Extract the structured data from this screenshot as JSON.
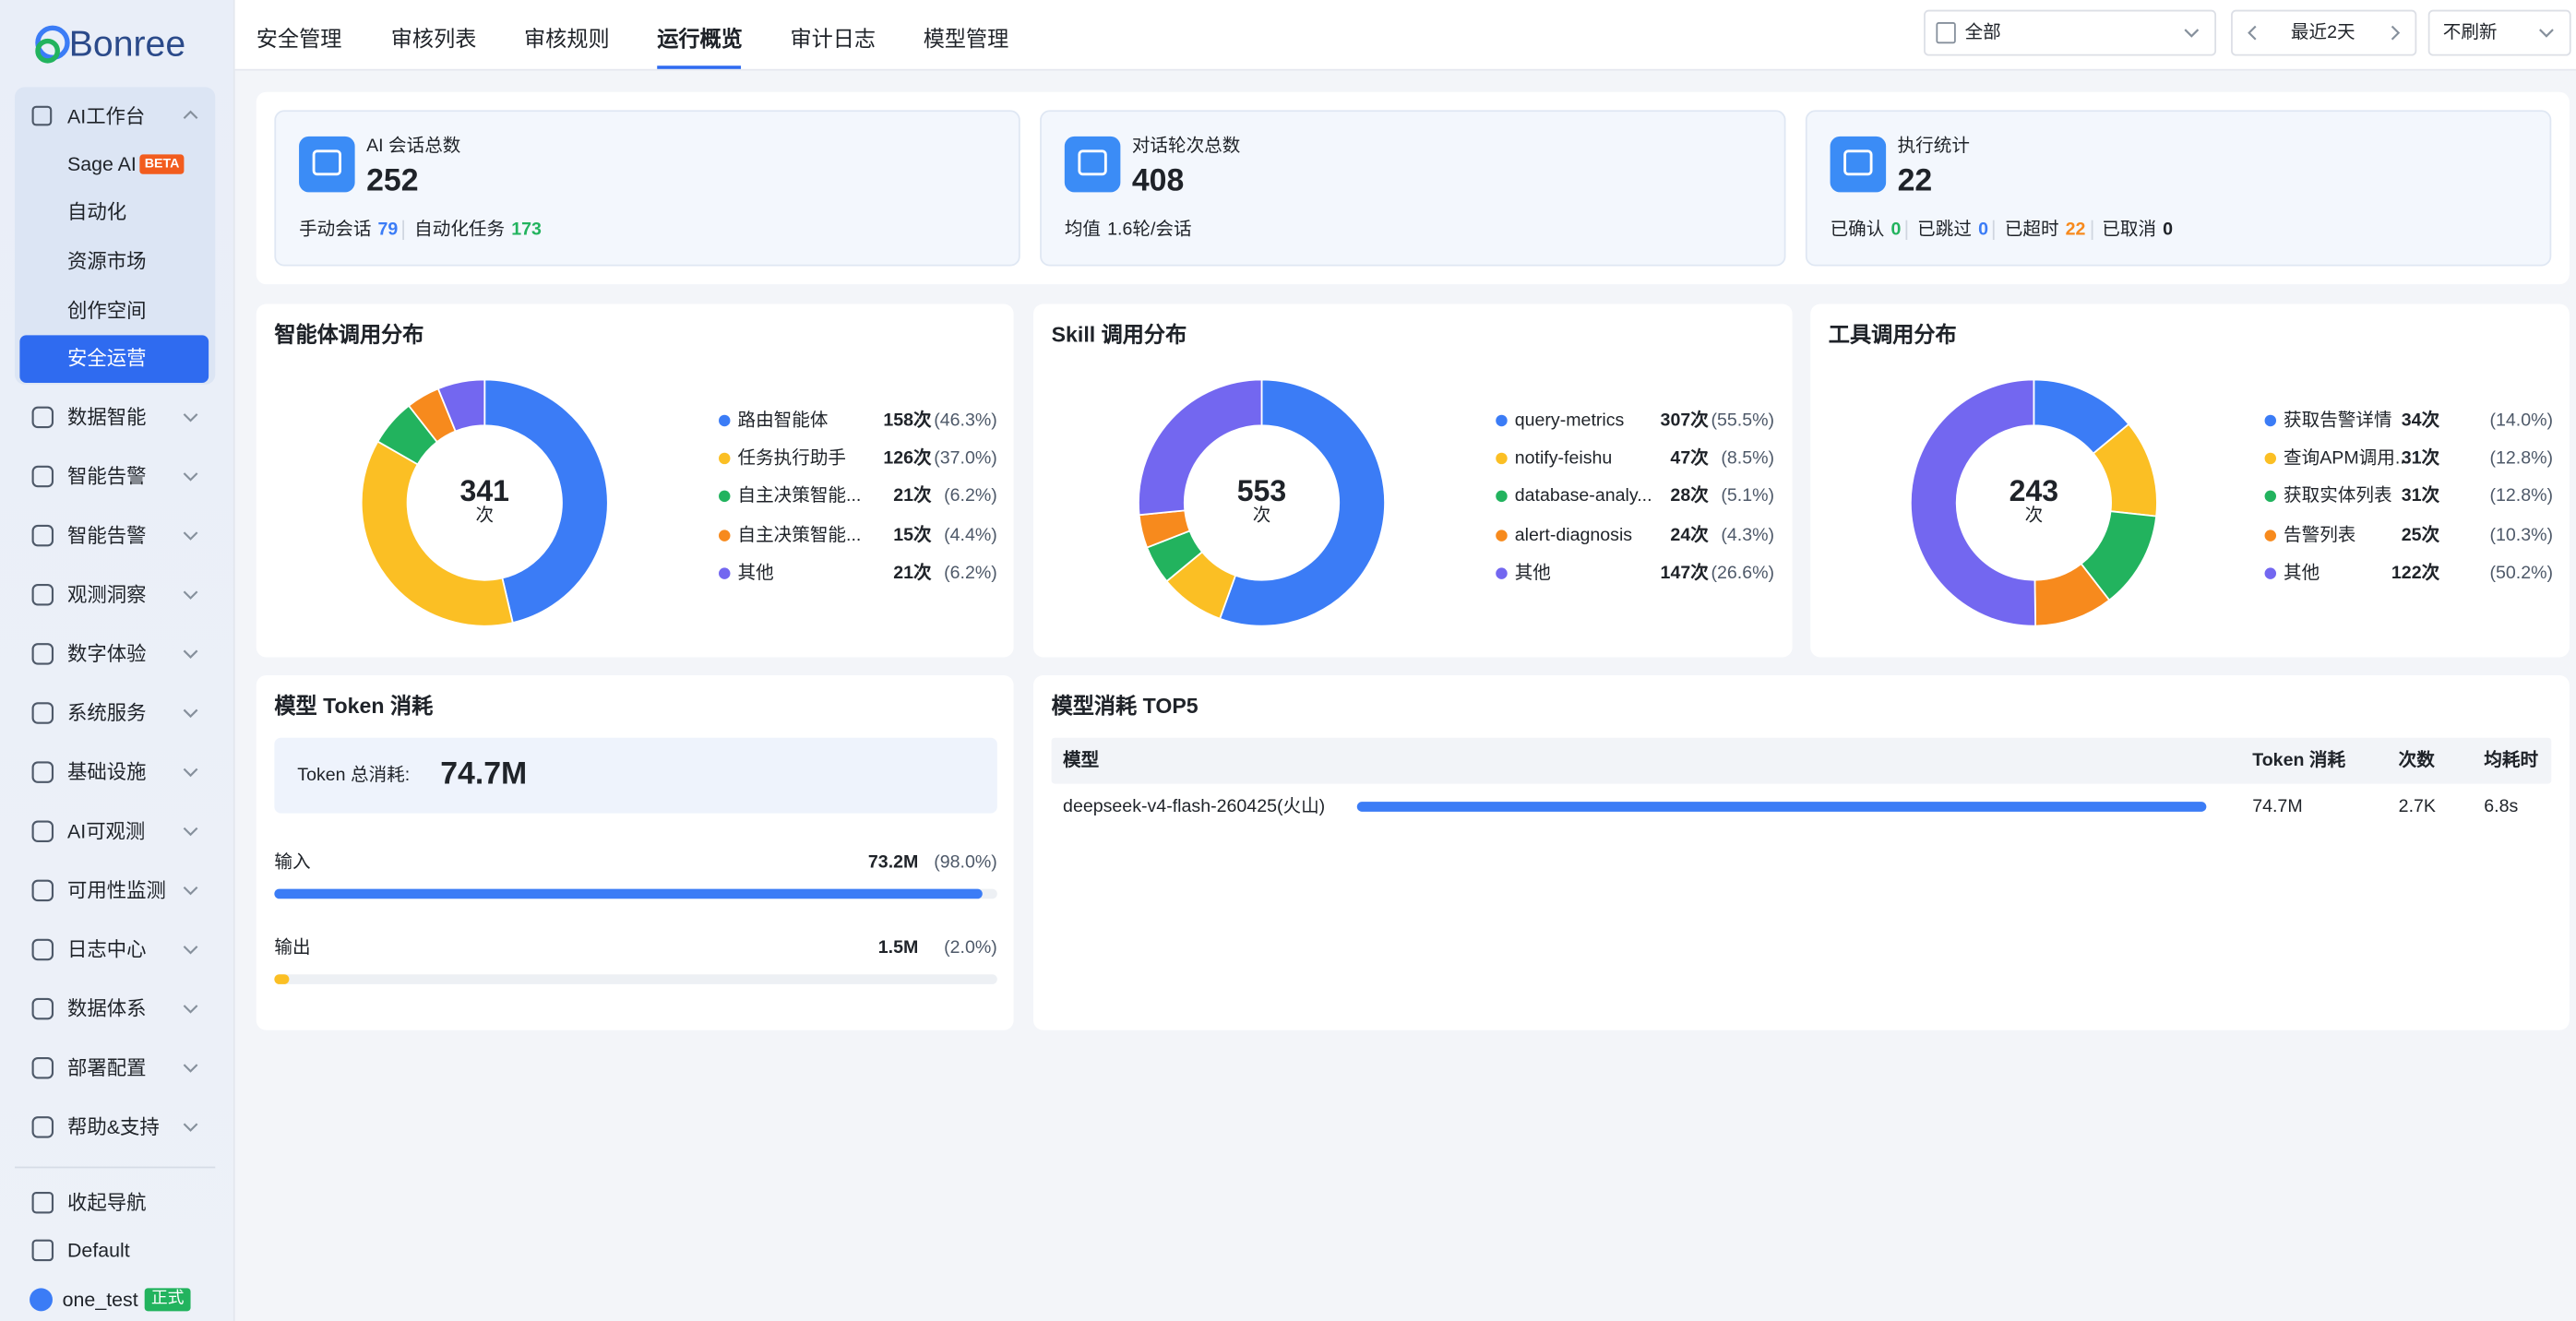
{
  "sidebar": {
    "logo": "Bonree",
    "group": {
      "label": "AI工作台",
      "children": [
        "Sage AI",
        "自动化",
        "资源市场",
        "创作空间",
        "安全运营"
      ],
      "badge": "BETA"
    },
    "items": [
      "数据智能",
      "智能告警",
      "智能告警",
      "观测洞察",
      "数字体验",
      "系统服务",
      "基础设施",
      "AI可观测",
      "可用性监测",
      "日志中心",
      "数据体系",
      "部署配置",
      "帮助&支持"
    ],
    "footer": [
      "收起导航",
      "Default",
      "one_test"
    ],
    "user_badge": "正式"
  },
  "tabs": [
    "安全管理",
    "审核列表",
    "审核规则",
    "运行概览",
    "审计日志",
    "模型管理"
  ],
  "toolbar": {
    "scope": "全部",
    "range": "最近2天",
    "refresh": "不刷新"
  },
  "cards": [
    {
      "title": "AI 会话总数",
      "value": 252,
      "details": [
        {
          "label": "手动会话",
          "value": 79
        },
        {
          "label": "自动化任务",
          "value": 173
        }
      ]
    },
    {
      "title": "对话轮次总数",
      "value": 408,
      "details": [
        {
          "label": "均值",
          "value": "1.6轮/会话"
        }
      ]
    },
    {
      "title": "执行统计",
      "value": 22,
      "details": [
        {
          "label": "已确认",
          "value": 0
        },
        {
          "label": "已跳过",
          "value": 0
        },
        {
          "label": "已超时",
          "value": 22
        },
        {
          "label": "已取消",
          "value": 0
        }
      ]
    }
  ],
  "chart_data": [
    {
      "type": "pie",
      "title": "智能体调用分布",
      "total": 341,
      "total_unit": "次",
      "categories": [
        "路由智能体",
        "任务执行助手",
        "自主决策智能...",
        "自主决策智能...",
        "其他"
      ],
      "values": [
        158,
        126,
        21,
        15,
        21
      ],
      "value_labels": [
        "158次",
        "126次",
        "21次",
        "15次",
        "21次"
      ],
      "share_labels": [
        "(46.3%)",
        "(37.0%)",
        "(6.2%)",
        "(4.4%)",
        "(6.2%)"
      ],
      "colors": [
        "#3b7cf6",
        "#fbbf24",
        "#22b35e",
        "#f78a1d",
        "#7367f0"
      ]
    },
    {
      "type": "pie",
      "title": "Skill 调用分布",
      "total": 553,
      "total_unit": "次",
      "categories": [
        "query-metrics",
        "notify-feishu",
        "database-analy...",
        "alert-diagnosis",
        "其他"
      ],
      "values": [
        307,
        47,
        28,
        24,
        147
      ],
      "value_labels": [
        "307次",
        "47次",
        "28次",
        "24次",
        "147次"
      ],
      "share_labels": [
        "(55.5%)",
        "(8.5%)",
        "(5.1%)",
        "(4.3%)",
        "(26.6%)"
      ],
      "colors": [
        "#3b7cf6",
        "#fbbf24",
        "#22b35e",
        "#f78a1d",
        "#7367f0"
      ]
    },
    {
      "type": "pie",
      "title": "工具调用分布",
      "total": 243,
      "total_unit": "次",
      "categories": [
        "获取告警详情",
        "查询APM调用...",
        "获取实体列表",
        "告警列表",
        "其他"
      ],
      "values": [
        34,
        31,
        31,
        25,
        122
      ],
      "value_labels": [
        "34次",
        "31次",
        "31次",
        "25次",
        "122次"
      ],
      "share_labels": [
        "(14.0%)",
        "(12.8%)",
        "(12.8%)",
        "(10.3%)",
        "(50.2%)"
      ],
      "colors": [
        "#3b7cf6",
        "#fbbf24",
        "#22b35e",
        "#f78a1d",
        "#7367f0"
      ]
    }
  ],
  "token": {
    "title": "模型 Token 消耗",
    "total_label": "Token 总消耗:",
    "total": "74.7M",
    "input": {
      "label": "输入",
      "value": "73.2M",
      "share": 98.0,
      "share_label": "(98.0%)",
      "color": "#3b7cf6"
    },
    "output": {
      "label": "输出",
      "value": "1.5M",
      "share": 2.0,
      "share_label": "(2.0%)",
      "color": "#fbbf24"
    }
  },
  "top5": {
    "title": "模型消耗 TOP5",
    "columns": [
      "模型",
      "Token 消耗",
      "次数",
      "均耗时"
    ],
    "rows": [
      {
        "model": "deepseek-v4-flash-260425(火山)",
        "token": "74.7M",
        "count": "2.7K",
        "avg": "6.8s"
      }
    ]
  }
}
